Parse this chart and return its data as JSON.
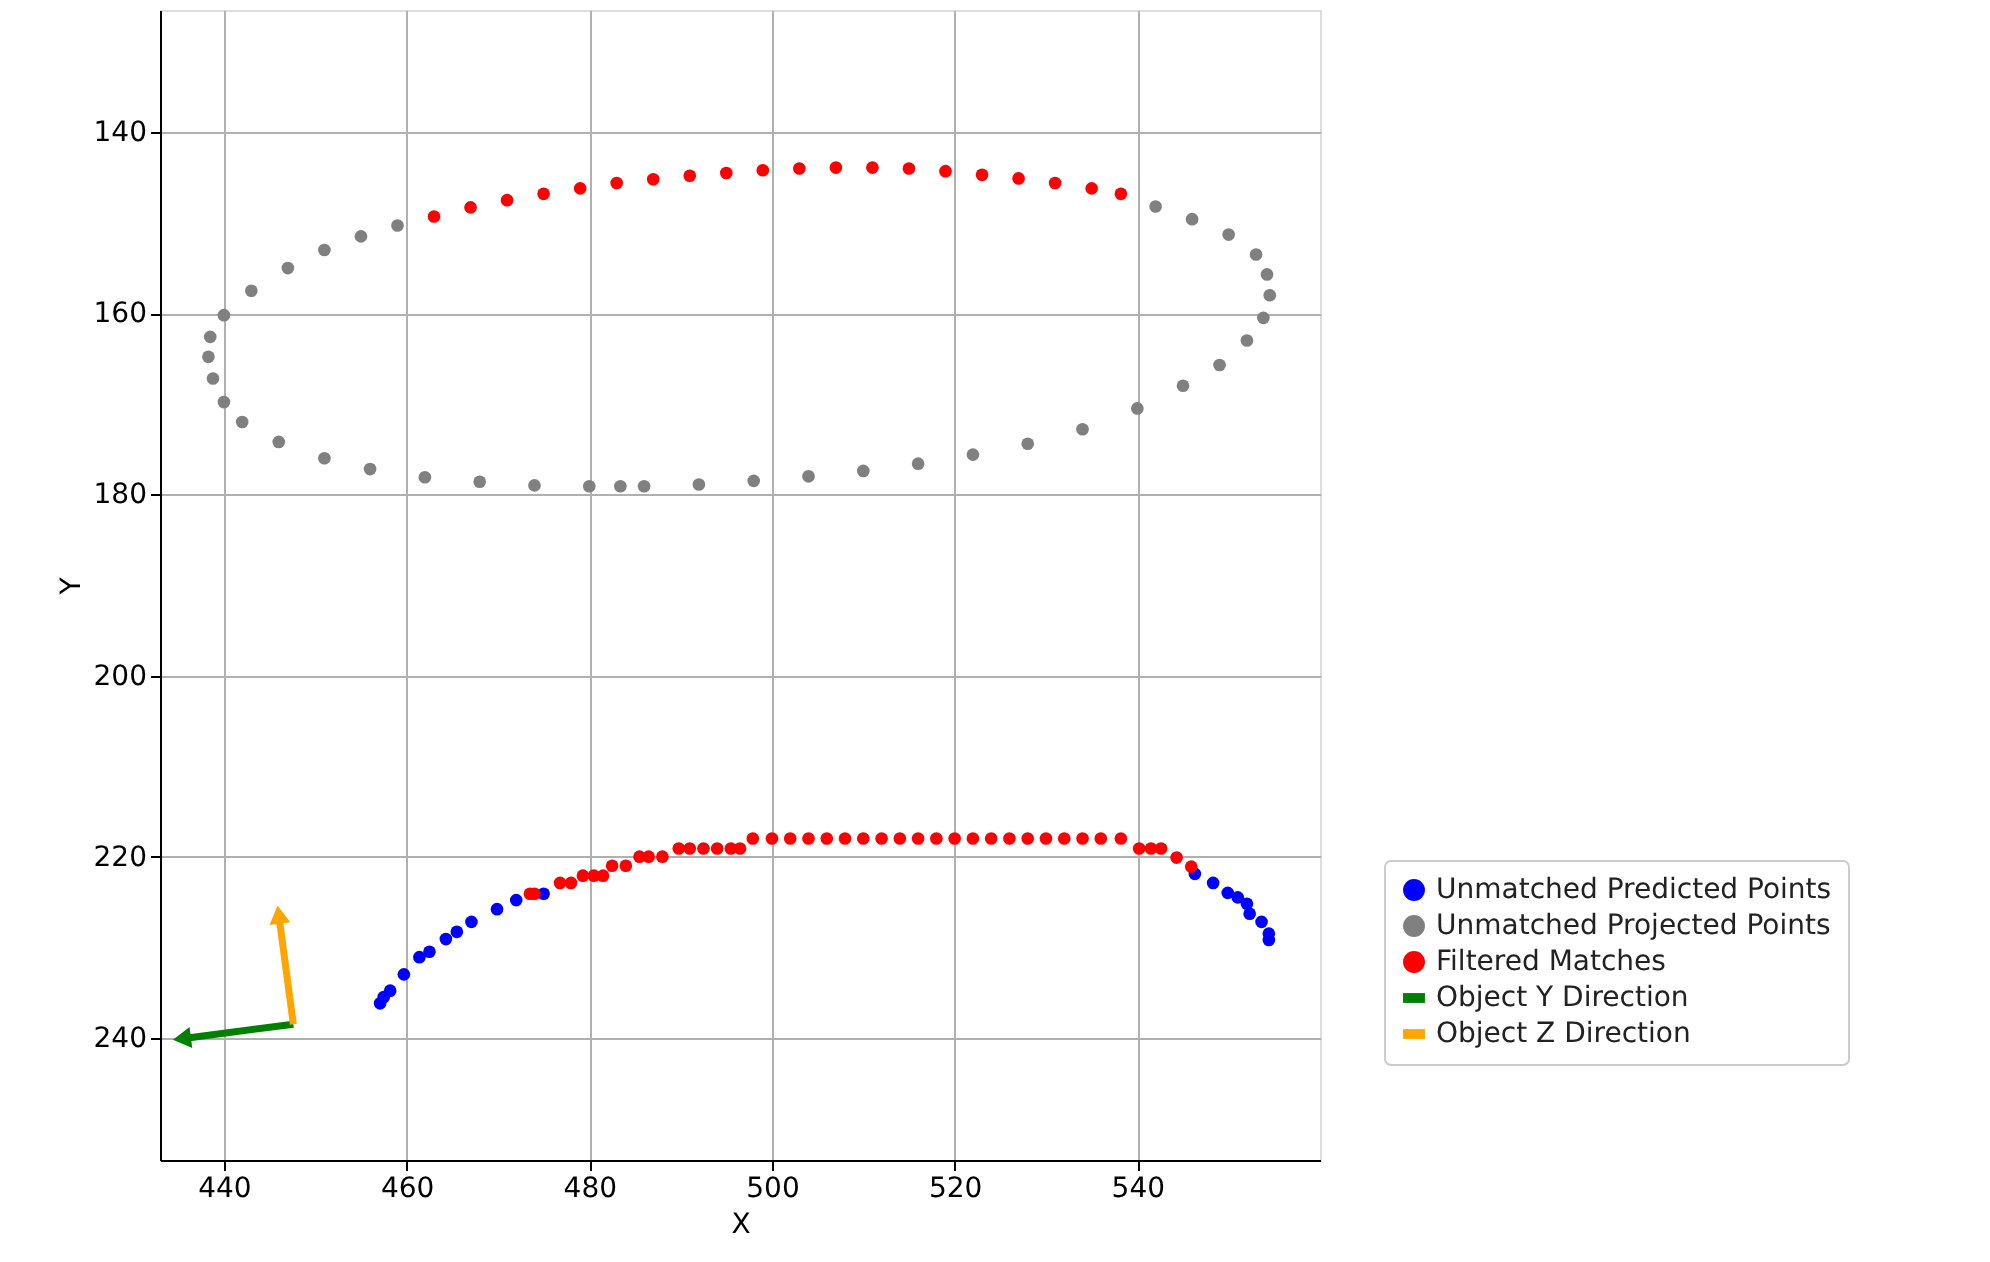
{
  "chart_data": {
    "type": "scatter",
    "xlabel": "X",
    "ylabel": "Y",
    "xlim": [
      433,
      560
    ],
    "ylim": [
      253.5,
      126.5
    ],
    "xticks": [
      440,
      460,
      480,
      500,
      520,
      540
    ],
    "yticks": [
      140,
      160,
      180,
      200,
      220,
      240
    ],
    "grid": true,
    "legend": "bottom right",
    "series": [
      {
        "name": "Unmatched Predicted Points",
        "color": "#0000ff",
        "marker": "circle",
        "x": [
          457.1,
          457.5,
          458.2,
          459.7,
          461.4,
          462.5,
          464.3,
          465.5,
          467.1,
          469.9,
          472,
          475,
          546.3,
          548.3,
          549.9,
          551,
          552,
          552.3,
          553.6,
          554.4,
          554.4
        ],
        "values": [
          236.2,
          235.5,
          234.8,
          233,
          231.1,
          230.5,
          229.1,
          228.3,
          227.2,
          225.8,
          224.8,
          224.1,
          221.9,
          222.9,
          224,
          224.5,
          225.2,
          226.3,
          227.2,
          228.5,
          229.2
        ]
      },
      {
        "name": "Unmatched Projected Points",
        "color": "#808080",
        "marker": "circle",
        "x": [
          459,
          455,
          451,
          447,
          443,
          440,
          438.5,
          438.3,
          438.8,
          440,
          442,
          446,
          451,
          456,
          462,
          468,
          474,
          480,
          483.4,
          486,
          492,
          498,
          504,
          510,
          516,
          522,
          528,
          534,
          540,
          545,
          549,
          552,
          553.8,
          554.5,
          554.2,
          553,
          550,
          546,
          542
        ],
        "values": [
          150.3,
          151.5,
          153,
          155,
          157.5,
          160.2,
          162.6,
          164.8,
          167.2,
          169.8,
          172,
          174.2,
          176,
          177.2,
          178.1,
          178.6,
          179,
          179.1,
          179.1,
          179.1,
          178.9,
          178.5,
          178,
          177.4,
          176.6,
          175.6,
          174.4,
          172.8,
          170.5,
          168,
          165.7,
          163,
          160.5,
          158,
          155.7,
          153.5,
          151.3,
          149.6,
          148.2
        ]
      },
      {
        "name": "Filtered Matches",
        "color": "#ff0000",
        "marker": "circle",
        "x": [
          463,
          467,
          471,
          475,
          479,
          483,
          487,
          491,
          495,
          499,
          503,
          507,
          511,
          515,
          519,
          523,
          527,
          531,
          535,
          538.2,
          473.5,
          474,
          476.8,
          478,
          479.3,
          480.5,
          481.5,
          482.5,
          484,
          485.5,
          486.5,
          488,
          489.8,
          491,
          492.5,
          494,
          495.5,
          496.5,
          497.9,
          500,
          502,
          504,
          506,
          508,
          510,
          512,
          514,
          516,
          518,
          520,
          522,
          524,
          526,
          528,
          530,
          532,
          534,
          536,
          538.2,
          540.2,
          541.5,
          542.6,
          544.3,
          545.9
        ],
        "values": [
          149.3,
          148.3,
          147.5,
          146.8,
          146.2,
          145.6,
          145.2,
          144.8,
          144.5,
          144.2,
          144,
          143.9,
          143.9,
          144,
          144.3,
          144.7,
          145.1,
          145.6,
          146.2,
          146.8,
          224.1,
          224.1,
          222.9,
          222.9,
          222.1,
          222.1,
          222.1,
          221,
          221,
          220,
          220,
          220,
          219.1,
          219.1,
          219.1,
          219.1,
          219.1,
          219.1,
          218,
          218,
          218,
          218,
          218,
          218,
          218,
          218,
          218,
          218,
          218,
          218,
          218,
          218,
          218,
          218,
          218,
          218,
          218,
          218,
          218,
          219.1,
          219.1,
          219.1,
          220.1,
          221.1
        ]
      },
      {
        "name": "Object Y Direction",
        "color": "#008000",
        "type": "line",
        "marker": "triangle",
        "x": [
          447.6,
          435.4
        ],
        "values": [
          238.5,
          240.1
        ]
      },
      {
        "name": "Object Z Direction",
        "color": "#ffa500",
        "type": "line",
        "marker": "triangle",
        "x": [
          447.6,
          446
        ],
        "values": [
          238.5,
          226.4
        ]
      }
    ]
  }
}
